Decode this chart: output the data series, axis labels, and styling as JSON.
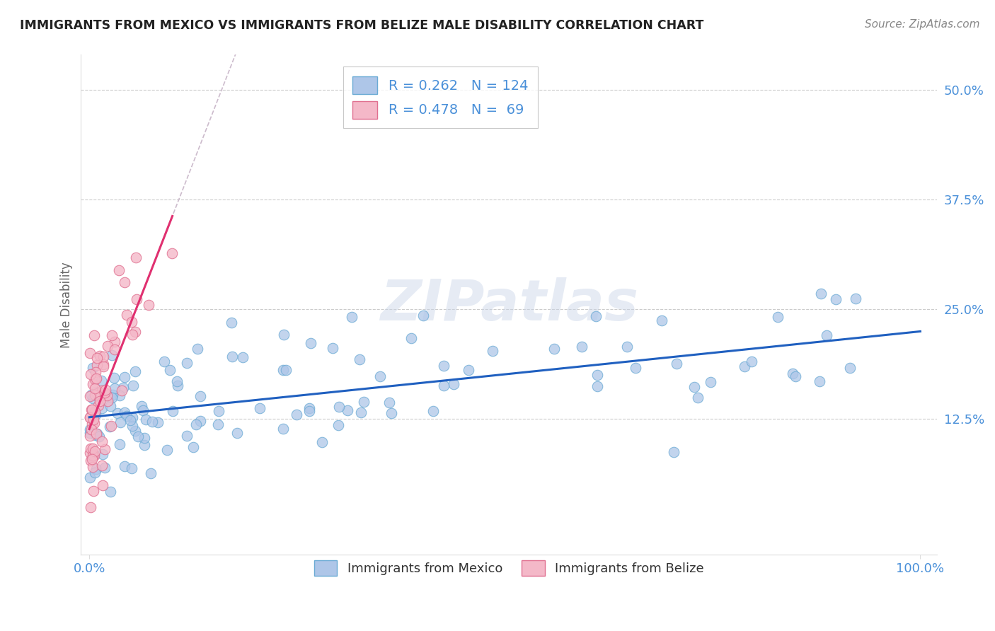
{
  "title": "IMMIGRANTS FROM MEXICO VS IMMIGRANTS FROM BELIZE MALE DISABILITY CORRELATION CHART",
  "source": "Source: ZipAtlas.com",
  "ylabel": "Male Disability",
  "watermark": "ZIPatlas",
  "xlim": [
    -0.01,
    1.02
  ],
  "ylim": [
    -0.03,
    0.54
  ],
  "xticks": [
    0.0,
    1.0
  ],
  "xticklabels": [
    "0.0%",
    "100.0%"
  ],
  "yticks": [
    0.125,
    0.25,
    0.375,
    0.5
  ],
  "yticklabels": [
    "12.5%",
    "25.0%",
    "37.5%",
    "50.0%"
  ],
  "mexico_R": 0.262,
  "mexico_N": 124,
  "belize_R": 0.478,
  "belize_N": 69,
  "mexico_color": "#aec6e8",
  "mexico_edge": "#6aaad4",
  "belize_color": "#f4b8c8",
  "belize_edge": "#e07090",
  "mexico_line_color": "#2060c0",
  "belize_line_color": "#e03070",
  "belize_dash_color": "#ccbbcc",
  "background_color": "#ffffff",
  "grid_color": "#cccccc",
  "title_color": "#222222",
  "tick_color": "#4a90d9"
}
